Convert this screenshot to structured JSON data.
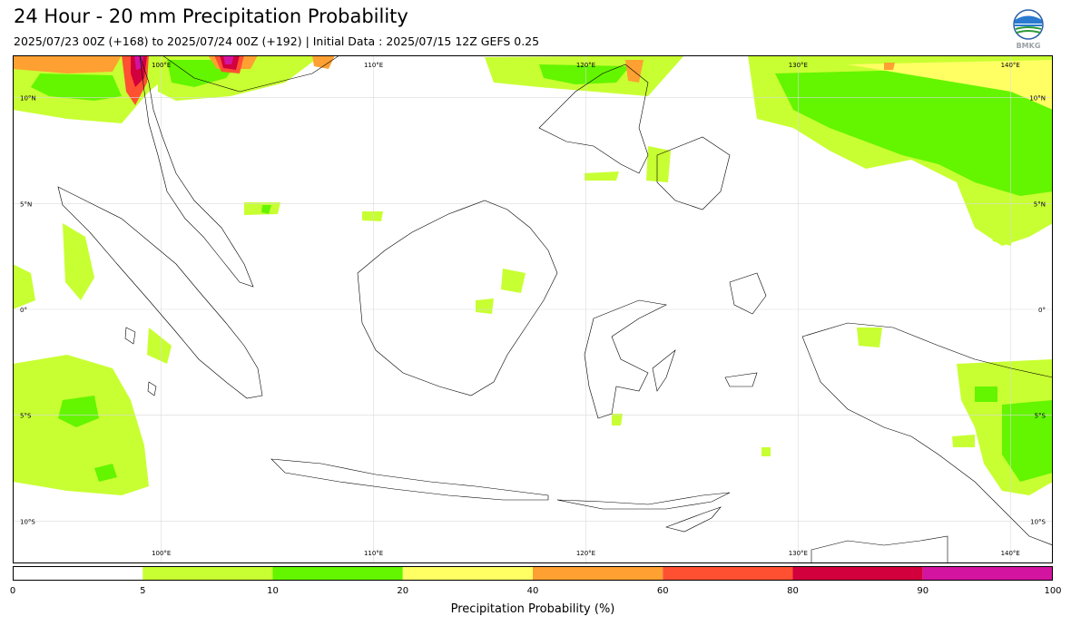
{
  "title": "24 Hour - 20 mm Precipitation Probability",
  "subtitle": "2025/07/23 00Z (+168) to 2025/07/24 00Z (+192) | Initial Data : 2025/07/15 12Z GEFS 0.25",
  "logo": {
    "text": "BMKG",
    "icon": "bmkg-logo"
  },
  "map": {
    "lon_range": [
      93,
      142
    ],
    "lat_range": [
      -12,
      12
    ],
    "lon_ticks": [
      {
        "value": 100,
        "label": "100°E"
      },
      {
        "value": 110,
        "label": "110°E"
      },
      {
        "value": 120,
        "label": "120°E"
      },
      {
        "value": 130,
        "label": "130°E"
      },
      {
        "value": 140,
        "label": "140°E"
      }
    ],
    "lat_ticks": [
      {
        "value": 10,
        "label": "10°N"
      },
      {
        "value": 5,
        "label": "5°N"
      },
      {
        "value": 0,
        "label": "0°"
      },
      {
        "value": -5,
        "label": "5°S"
      },
      {
        "value": -10,
        "label": "10°S"
      }
    ],
    "grid": true
  },
  "colorbar": {
    "title": "Precipitation Probability (%)",
    "bins": [
      {
        "from": 0,
        "to": 5,
        "color": "#ffffff"
      },
      {
        "from": 5,
        "to": 10,
        "color": "#c8ff32"
      },
      {
        "from": 10,
        "to": 20,
        "color": "#64f500"
      },
      {
        "from": 20,
        "to": 40,
        "color": "#ffff64"
      },
      {
        "from": 40,
        "to": 60,
        "color": "#ffa032"
      },
      {
        "from": 60,
        "to": 80,
        "color": "#ff5032"
      },
      {
        "from": 80,
        "to": 90,
        "color": "#d2003c"
      },
      {
        "from": 90,
        "to": 100,
        "color": "#d214a0"
      }
    ],
    "labels": [
      "0",
      "5",
      "10",
      "20",
      "40",
      "60",
      "80",
      "90",
      "100"
    ]
  }
}
